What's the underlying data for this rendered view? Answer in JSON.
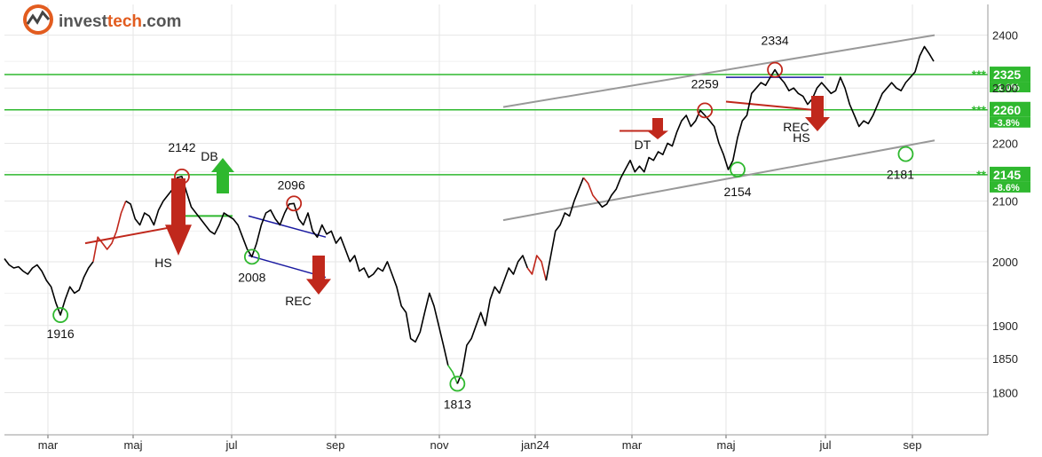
{
  "logo": {
    "part1": "invest",
    "part2": "tech",
    "part3": ".com"
  },
  "chart_data": {
    "type": "line",
    "title": "",
    "xlabel": "",
    "ylabel": "",
    "scale": "log",
    "ylim": [
      1740,
      2460
    ],
    "x_ticks": [
      "mar",
      "maj",
      "jul",
      "sep",
      "nov",
      "jan24",
      "mar",
      "maj",
      "jul",
      "sep"
    ],
    "y_ticks": [
      1800,
      1850,
      1900,
      2000,
      2100,
      2200,
      2300,
      2400
    ],
    "grid": true,
    "series": [
      {
        "values": [
          2005,
          1995,
          1990,
          1992,
          1985,
          1980,
          1990,
          1995,
          1985,
          1970,
          1960,
          1935,
          1916,
          1940,
          1960,
          1950,
          1955,
          1975,
          1990,
          2000,
          2040,
          2030,
          2020,
          2030,
          2050,
          2080,
          2100,
          2095,
          2070,
          2060,
          2080,
          2075,
          2060,
          2085,
          2100,
          2110,
          2120,
          2140,
          2142,
          2115,
          2090,
          2080,
          2070,
          2060,
          2050,
          2045,
          2060,
          2080,
          2075,
          2070,
          2060,
          2040,
          2020,
          2008,
          2030,
          2060,
          2080,
          2085,
          2070,
          2060,
          2080,
          2095,
          2096,
          2070,
          2060,
          2080,
          2050,
          2040,
          2060,
          2045,
          2050,
          2030,
          2040,
          2020,
          2000,
          2010,
          1985,
          1990,
          1975,
          1980,
          1990,
          1985,
          2000,
          1980,
          1960,
          1930,
          1920,
          1880,
          1875,
          1890,
          1920,
          1950,
          1930,
          1900,
          1870,
          1840,
          1830,
          1813,
          1830,
          1870,
          1880,
          1900,
          1920,
          1900,
          1940,
          1960,
          1950,
          1970,
          1990,
          1980,
          2000,
          2010,
          1990,
          1980,
          2010,
          2000,
          1970,
          2010,
          2050,
          2060,
          2080,
          2075,
          2100,
          2120,
          2140,
          2130,
          2110,
          2100,
          2090,
          2095,
          2110,
          2120,
          2140,
          2155,
          2170,
          2150,
          2160,
          2150,
          2175,
          2170,
          2185,
          2180,
          2200,
          2195,
          2220,
          2240,
          2250,
          2230,
          2240,
          2259,
          2250,
          2240,
          2230,
          2200,
          2180,
          2154,
          2170,
          2210,
          2240,
          2250,
          2290,
          2300,
          2310,
          2305,
          2320,
          2334,
          2320,
          2310,
          2295,
          2300,
          2290,
          2285,
          2270,
          2280,
          2300,
          2310,
          2300,
          2290,
          2295,
          2320,
          2300,
          2270,
          2250,
          2230,
          2240,
          2235,
          2250,
          2270,
          2290,
          2300,
          2310,
          2300,
          2295,
          2310,
          2320,
          2330,
          2360,
          2378,
          2365,
          2350
        ]
      }
    ],
    "points": [
      {
        "label": "1916",
        "value": 1916,
        "type": "bottom"
      },
      {
        "label": "2142",
        "value": 2142,
        "type": "top"
      },
      {
        "label": "2008",
        "value": 2008,
        "type": "bottom"
      },
      {
        "label": "2096",
        "value": 2096,
        "type": "top"
      },
      {
        "label": "1813",
        "value": 1813,
        "type": "bottom"
      },
      {
        "label": "2259",
        "value": 2259,
        "type": "top"
      },
      {
        "label": "2154",
        "value": 2154,
        "type": "bottom"
      },
      {
        "label": "2334",
        "value": 2334,
        "type": "top"
      },
      {
        "label": "2181",
        "value": 2181,
        "type": "bottom"
      }
    ],
    "patterns": [
      {
        "label": "HS",
        "signal": "sell"
      },
      {
        "label": "DB",
        "signal": "buy"
      },
      {
        "label": "REC",
        "signal": "sell"
      },
      {
        "label": "DT",
        "signal": "sell"
      },
      {
        "label": "REC",
        "signal": "sell"
      },
      {
        "label": "HS",
        "signal": "sell"
      }
    ],
    "levels": [
      {
        "value": 2325,
        "label": "2325",
        "pct": "-1.0%",
        "stars": "***"
      },
      {
        "value": 2260,
        "label": "2260",
        "pct": "-3.8%",
        "stars": "***"
      },
      {
        "value": 2145,
        "label": "2145",
        "pct": "-8.6%",
        "stars": "**"
      }
    ],
    "colors": {
      "price": "#000000",
      "price_sell": "#c0281c",
      "price_buy": "#2fb82f",
      "level": "#2fb82f",
      "channel": "#999999",
      "top_marker": "#c0281c",
      "bottom_marker": "#2fb82f",
      "sell_arrow": "#c0281c",
      "buy_arrow": "#2fb82f",
      "rec_lines": "#1a1aa0",
      "neckline": "#c0281c",
      "grid": "#e6e6e6"
    }
  }
}
